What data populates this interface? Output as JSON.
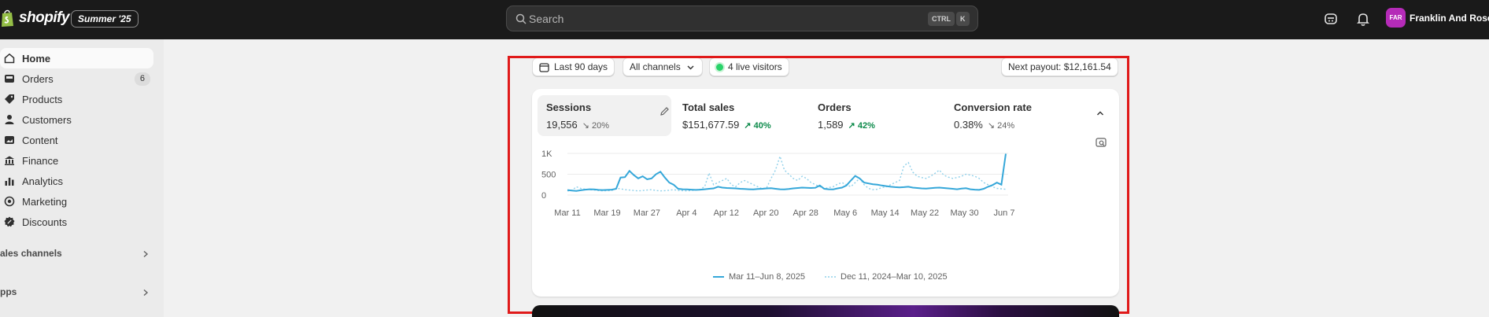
{
  "header": {
    "logo_text": "shopify",
    "edition": "Summer '25",
    "search_placeholder": "Search",
    "shortcut_ctrl": "CTRL",
    "shortcut_k": "K",
    "user_initials": "FAR",
    "user_name": "Franklin And Rose"
  },
  "sidebar": {
    "items": [
      {
        "label": "Home",
        "icon": "home-icon",
        "active": true
      },
      {
        "label": "Orders",
        "icon": "inbox-icon",
        "badge": "6"
      },
      {
        "label": "Products",
        "icon": "tag-icon"
      },
      {
        "label": "Customers",
        "icon": "person-icon"
      },
      {
        "label": "Content",
        "icon": "image-icon"
      },
      {
        "label": "Finance",
        "icon": "bank-icon"
      },
      {
        "label": "Analytics",
        "icon": "bar-chart-icon"
      },
      {
        "label": "Marketing",
        "icon": "target-icon"
      },
      {
        "label": "Discounts",
        "icon": "discount-icon"
      }
    ],
    "sales_channels_label": "ales channels",
    "apps_label": "pps"
  },
  "filters": {
    "date_range": "Last 90 days",
    "channels": "All channels",
    "live_visitors": "4 live visitors",
    "next_payout": "Next payout: $12,161.54"
  },
  "metrics": [
    {
      "label": "Sessions",
      "value": "19,556",
      "change": "20%",
      "direction": "down"
    },
    {
      "label": "Total sales",
      "value": "$151,677.59",
      "change": "40%",
      "direction": "up"
    },
    {
      "label": "Orders",
      "value": "1,589",
      "change": "42%",
      "direction": "up"
    },
    {
      "label": "Conversion rate",
      "value": "0.38%",
      "change": "24%",
      "direction": "down"
    }
  ],
  "colors": {
    "current_series": "#35a7d9",
    "previous_series": "#8fd0ea",
    "highlight_border": "#e01a1a",
    "trend_up": "#0c8a4a"
  },
  "chart_data": {
    "type": "line",
    "ylim": [
      0,
      1000
    ],
    "y_ticks": [
      "1K",
      "500",
      "0"
    ],
    "x_ticks": [
      "Mar 11",
      "Mar 19",
      "Mar 27",
      "Apr 4",
      "Apr 12",
      "Apr 20",
      "Apr 28",
      "May 6",
      "May 14",
      "May 22",
      "May 30",
      "Jun 7"
    ],
    "series": [
      {
        "name": "Mar 11–Jun 8, 2025",
        "style": "solid",
        "values": [
          120,
          110,
          100,
          115,
          130,
          140,
          135,
          125,
          120,
          125,
          130,
          150,
          420,
          430,
          580,
          480,
          400,
          450,
          380,
          400,
          500,
          560,
          420,
          300,
          250,
          150,
          140,
          135,
          130,
          125,
          130,
          140,
          150,
          160,
          200,
          180,
          170,
          165,
          160,
          150,
          145,
          140,
          135,
          145,
          150,
          160,
          165,
          150,
          140,
          135,
          145,
          160,
          170,
          180,
          175,
          170,
          175,
          230,
          150,
          140,
          135,
          160,
          180,
          230,
          350,
          460,
          400,
          300,
          280,
          260,
          250,
          230,
          215,
          200,
          190,
          185,
          190,
          200,
          180,
          170,
          160,
          155,
          165,
          175,
          180,
          170,
          160,
          150,
          140,
          155,
          165,
          140,
          130,
          125,
          150,
          200,
          240,
          300,
          250,
          990
        ]
      },
      {
        "name": "Dec 11, 2024–Mar 10, 2025",
        "style": "dotted",
        "values": [
          100,
          110,
          200,
          160,
          140,
          130,
          120,
          110,
          100,
          105,
          110,
          160,
          150,
          130,
          120,
          110,
          100,
          110,
          120,
          130,
          110,
          100,
          105,
          115,
          130,
          110,
          105,
          100,
          110,
          120,
          140,
          200,
          530,
          250,
          300,
          350,
          400,
          250,
          200,
          300,
          350,
          300,
          250,
          200,
          150,
          180,
          400,
          600,
          930,
          600,
          500,
          400,
          350,
          450,
          400,
          300,
          250,
          200,
          150,
          180,
          200,
          260,
          300,
          250,
          200,
          300,
          400,
          250,
          160,
          130,
          140,
          180,
          200,
          250,
          300,
          350,
          700,
          780,
          550,
          450,
          420,
          400,
          450,
          520,
          600,
          480,
          430,
          400,
          420,
          450,
          500,
          480,
          450,
          400,
          300,
          250,
          200,
          160,
          150,
          140
        ]
      }
    ]
  }
}
